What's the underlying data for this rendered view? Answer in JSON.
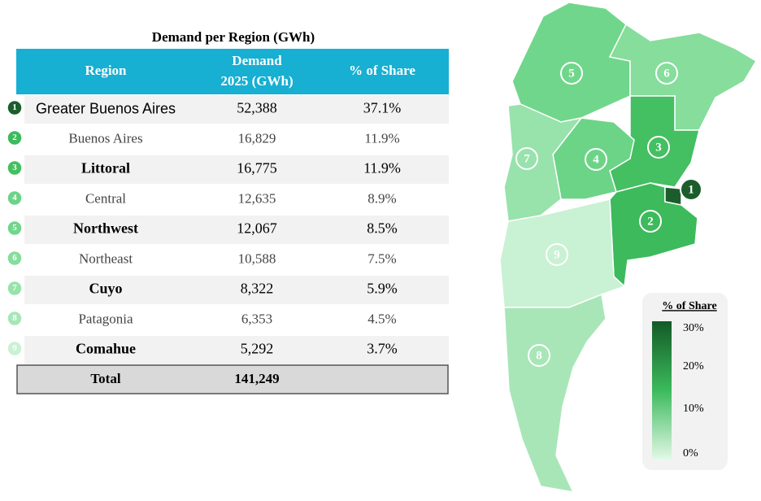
{
  "table": {
    "title": "Demand per Region (GWh)",
    "header": [
      "Region",
      "Demand",
      "2025 (GWh)",
      "% of Share"
    ],
    "rows": [
      {
        "number": "1",
        "region": "Greater Buenos Aires",
        "demand": "52,388",
        "share": "37.1%",
        "color": "#1b5e2c"
      },
      {
        "number": "2",
        "region": "Buenos Aires",
        "demand": "16,829",
        "share": "11.9%",
        "color": "#3cba5c"
      },
      {
        "number": "3",
        "region": "Littoral",
        "demand": "16,775",
        "share": "11.9%",
        "color": "#44bf62"
      },
      {
        "number": "4",
        "region": "Central",
        "demand": "12,635",
        "share": "8.9%",
        "color": "#6cd487"
      },
      {
        "number": "5",
        "region": "Northwest",
        "demand": "12,067",
        "share": "8.5%",
        "color": "#70d68b"
      },
      {
        "number": "6",
        "region": "Northeast",
        "demand": "10,588",
        "share": "7.5%",
        "color": "#86dd9c"
      },
      {
        "number": "7",
        "region": "Cuyo",
        "demand": "8,322",
        "share": "5.9%",
        "color": "#98e2ac"
      },
      {
        "number": "8",
        "region": "Patagonia",
        "demand": "6,353",
        "share": "4.5%",
        "color": "#a8e6b8"
      },
      {
        "number": "9",
        "region": "Comahue",
        "demand": "5,292",
        "share": "3.7%",
        "color": "#c9f1d3"
      }
    ],
    "total": {
      "label": "Total",
      "demand": "141,249"
    }
  },
  "map": {
    "regions": [
      {
        "label": "5",
        "color": "#70d68b"
      },
      {
        "label": "6",
        "color": "#86dd9c"
      },
      {
        "label": "3",
        "color": "#44bf62"
      },
      {
        "label": "4",
        "color": "#6cd487"
      },
      {
        "label": "7",
        "color": "#98e2ac"
      },
      {
        "label": "2",
        "color": "#3cba5c"
      },
      {
        "label": "9",
        "color": "#c9f1d3"
      },
      {
        "label": "8",
        "color": "#a8e6b8"
      },
      {
        "label": "1",
        "color": "#1b5e2c"
      }
    ],
    "legend": {
      "title": "% of Share",
      "labels": [
        "30%",
        "20%",
        "10%",
        "0%"
      ]
    }
  }
}
